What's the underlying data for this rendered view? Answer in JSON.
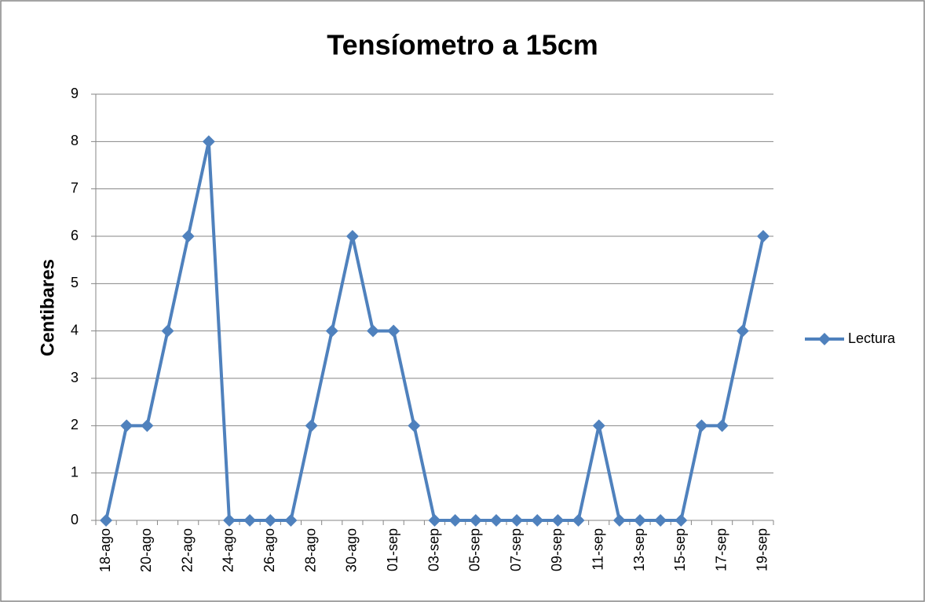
{
  "chart_data": {
    "type": "line",
    "title": "Tensíometro a 15cm",
    "ylabel": "Centibares",
    "categories": [
      "18-ago",
      null,
      "20-ago",
      null,
      "22-ago",
      null,
      "24-ago",
      null,
      "26-ago",
      null,
      "28-ago",
      null,
      "30-ago",
      null,
      "01-sep",
      null,
      "03-sep",
      null,
      "05-sep",
      null,
      "07-sep",
      null,
      "09-sep",
      null,
      "11-sep",
      null,
      "13-sep",
      null,
      "15-sep",
      null,
      "17-sep",
      null,
      "19-sep"
    ],
    "series": [
      {
        "name": "Lectura",
        "color": "#4f81bd",
        "values": [
          0,
          2,
          2,
          4,
          6,
          8,
          0,
          0,
          0,
          0,
          2,
          4,
          6,
          4,
          4,
          2,
          0,
          0,
          0,
          0,
          0,
          0,
          0,
          0,
          2,
          0,
          0,
          0,
          0,
          2,
          2,
          4,
          6
        ]
      }
    ],
    "ylim": [
      0,
      9
    ],
    "yticks": [
      0,
      1,
      2,
      3,
      4,
      5,
      6,
      7,
      8,
      9
    ],
    "grid": true,
    "legend": "right"
  }
}
